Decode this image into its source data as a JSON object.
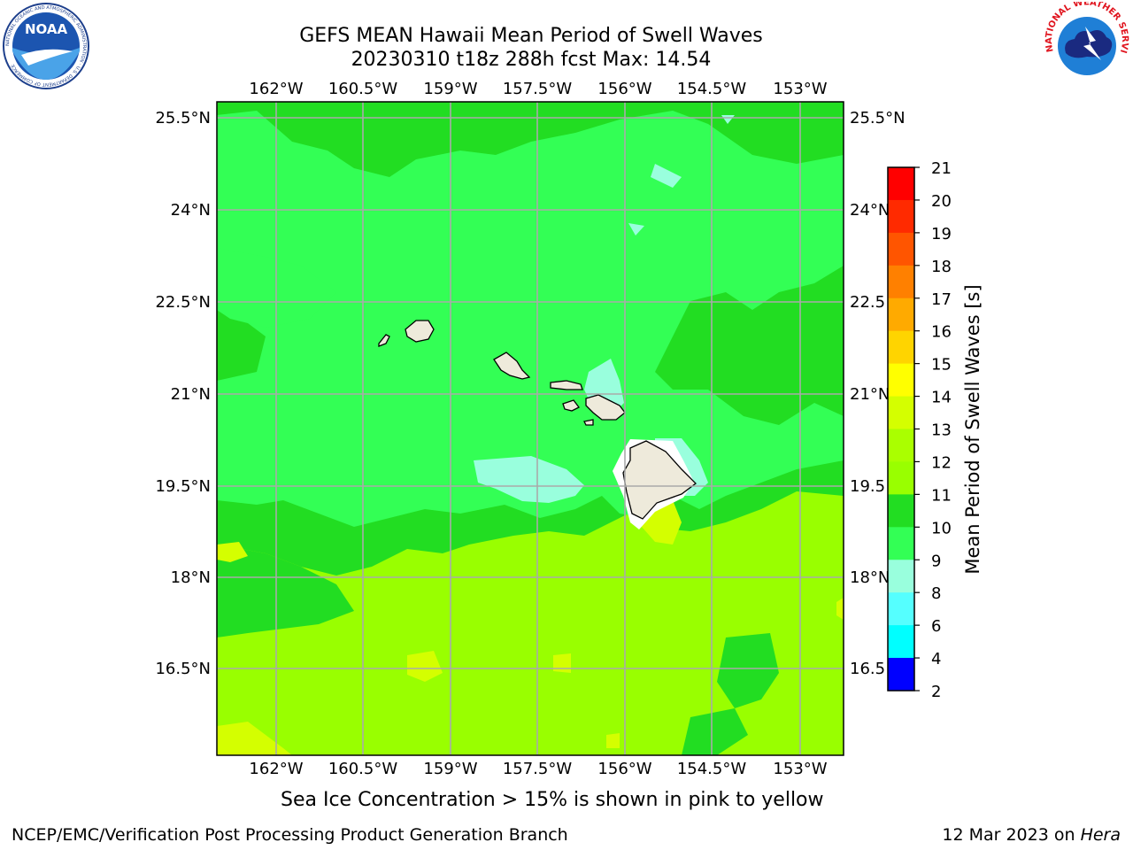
{
  "header": {
    "title_line1": "GEFS MEAN Hawaii Mean Period of Swell Waves",
    "title_line2": "20230310 t18z 288h fcst   Max: 14.54"
  },
  "logos": {
    "left": "noaa-logo",
    "left_text": "NOAA",
    "left_ring_text": "NATIONAL OCEANIC AND ATMOSPHERIC ADMINISTRATION · U.S. DEPARTMENT OF COMMERCE",
    "right": "nws-logo",
    "right_ring_text": "NATIONAL WEATHER SERVICE"
  },
  "map": {
    "lon_labels": [
      "162°W",
      "160.5°W",
      "159°W",
      "157.5°W",
      "156°W",
      "154.5°W",
      "153°W"
    ],
    "lat_labels": [
      "25.5°N",
      "24°N",
      "22.5°N",
      "21°N",
      "19.5°N",
      "18°N",
      "16.5°N"
    ],
    "lat_labels_right": [
      "25.5°N",
      "24°N",
      "22.5",
      "21°N",
      "19.5",
      "18°N",
      "16.5"
    ],
    "base_fill_color": "#99ff00",
    "land_color": "#eeeadb",
    "grid_color": "#aaaaaa"
  },
  "colorbar": {
    "label": "Mean Period of Swell Waves [s]",
    "ticks": [
      "21",
      "20",
      "19",
      "18",
      "17",
      "16",
      "15",
      "14",
      "13",
      "12",
      "11",
      "10",
      "9",
      "8",
      "6",
      "4",
      "2"
    ],
    "colors": [
      "#ff0000",
      "#ff2a00",
      "#ff5500",
      "#ff8000",
      "#ffaa00",
      "#ffd400",
      "#ffff00",
      "#d4ff00",
      "#aaff00",
      "#99ff00",
      "#22dd22",
      "#33ff55",
      "#99ffdd",
      "#55ffff",
      "#00ffff",
      "#0077ff",
      "#0000ff"
    ]
  },
  "caption": "Sea Ice Concentration > 15% is shown in pink to yellow",
  "footer": {
    "left": "NCEP/EMC/Verification Post Processing Product Generation Branch",
    "right_date": "12 Mar 2023 on ",
    "right_host": "Hera"
  }
}
